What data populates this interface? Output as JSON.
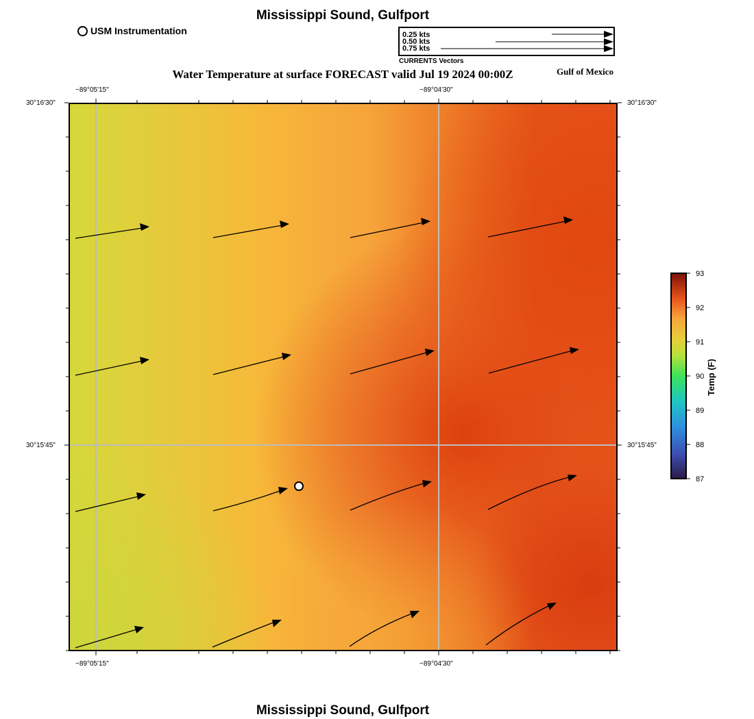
{
  "header": {
    "location_title": "Mississippi Sound, Gulfport",
    "forecast_title": "Water Temperature at surface FORECAST valid Jul 19 2024 00:00Z",
    "region_label": "Gulf of Mexico",
    "footer_title": "Mississippi Sound, Gulfport"
  },
  "legend": {
    "instrument_label": "USM Instrumentation",
    "vector_scale": [
      "0.25 kts",
      "0.50 kts",
      "0.75 kts"
    ],
    "vector_caption": "CURRENTS Vectors"
  },
  "map": {
    "lon_labels": [
      "−89°05'15\"",
      "−89°04'30\""
    ],
    "lat_labels": [
      "30°16'30\"",
      "30°15'45\""
    ],
    "gridline_color": "#bdbdbd"
  },
  "colorbar": {
    "title": "Temp (F)",
    "ticks": [
      "93",
      "92",
      "91",
      "90",
      "89",
      "88",
      "87"
    ],
    "min": 87,
    "max": 93
  },
  "chart_data": {
    "type": "heatmap",
    "title": "Water Temperature at surface FORECAST valid Jul 19 2024 00:00Z",
    "value_range": [
      87,
      93
    ],
    "color_scale": [
      "#2e1e4c",
      "#3e6ad8",
      "#1ec2c9",
      "#38e05a",
      "#cde033",
      "#f7b13a",
      "#e74c17",
      "#7e1109"
    ]
  }
}
